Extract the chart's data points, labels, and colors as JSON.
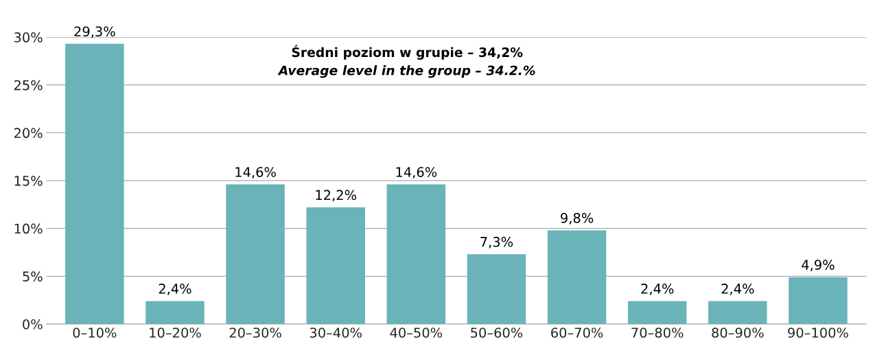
{
  "chart_data": {
    "type": "bar",
    "categories": [
      "0–10%",
      "10–20%",
      "20–30%",
      "30–40%",
      "40–50%",
      "50–60%",
      "60–70%",
      "70–80%",
      "80–90%",
      "90–100%"
    ],
    "values": [
      29.3,
      2.4,
      14.6,
      12.2,
      14.6,
      7.3,
      9.8,
      2.4,
      2.4,
      4.9
    ],
    "value_labels": [
      "29,3%",
      "2,4%",
      "14,6%",
      "12,2%",
      "14,6%",
      "7,3%",
      "9,8%",
      "2,4%",
      "2,4%",
      "4,9%"
    ],
    "color": "#6ab3b8",
    "ylim": [
      0,
      30
    ],
    "yticks": [
      {
        "value": 0,
        "label": "0%"
      },
      {
        "value": 5,
        "label": "5%"
      },
      {
        "value": 10,
        "label": "10%"
      },
      {
        "value": 15,
        "label": "15%"
      },
      {
        "value": 20,
        "label": "20%"
      },
      {
        "value": 25,
        "label": "25%"
      },
      {
        "value": 30,
        "label": "30%"
      }
    ],
    "grid": "y",
    "annotations": [
      "Średni poziom w grupie – 34,2%",
      "Average level in the group – 34.2.%"
    ]
  }
}
